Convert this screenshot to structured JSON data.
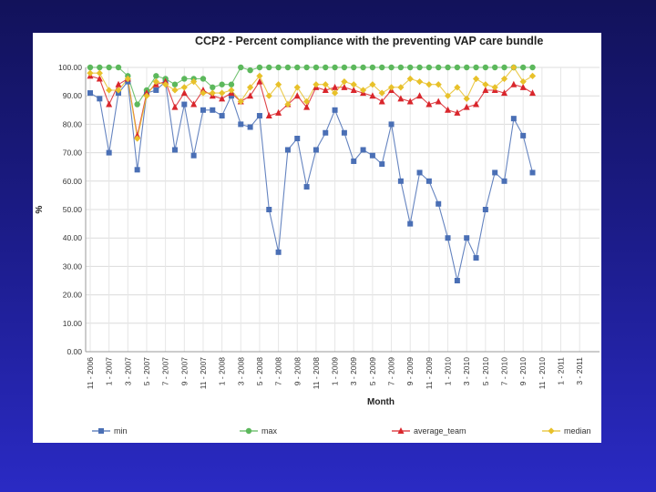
{
  "chart_data": {
    "type": "line",
    "title": "CCP2 - Percent compliance with the preventing VAP care bundle",
    "xlabel": "Month",
    "ylabel": "%",
    "ylim": [
      0,
      100
    ],
    "yticks": [
      "0.00",
      "10.00",
      "20.00",
      "30.00",
      "40.00",
      "50.00",
      "60.00",
      "70.00",
      "80.00",
      "90.00",
      "100.00"
    ],
    "grid": true,
    "legend": "bottom",
    "x_tick_labels": [
      "11 - 2006",
      "1 - 2007",
      "3 - 2007",
      "5 - 2007",
      "7 - 2007",
      "9 - 2007",
      "11 - 2007",
      "1 - 2008",
      "3 - 2008",
      "5 - 2008",
      "7 - 2008",
      "9 - 2008",
      "11 - 2008",
      "1 - 2009",
      "3 - 2009",
      "5 - 2009",
      "7 - 2009",
      "9 - 2009",
      "11 - 2009",
      "1 - 2010",
      "3 - 2010",
      "5 - 2010",
      "7 - 2010",
      "9 - 2010",
      "11 - 2010",
      "1 - 2011",
      "3 - 2011"
    ],
    "series": [
      {
        "name": "min",
        "color": "#4a6fb5",
        "marker": "square",
        "values": [
          91,
          89,
          70,
          91,
          95,
          64,
          91,
          92,
          95,
          71,
          87,
          69,
          85,
          85,
          83,
          90,
          80,
          79,
          83,
          50,
          35,
          71,
          75,
          58,
          71,
          77,
          85,
          77,
          67,
          71,
          69,
          66,
          80,
          60,
          45,
          63,
          60,
          52,
          40,
          25,
          40,
          33,
          50,
          63,
          60,
          82,
          76,
          63
        ]
      },
      {
        "name": "max",
        "color": "#5cb85c",
        "marker": "circle",
        "values": [
          100,
          100,
          100,
          100,
          97,
          87,
          92,
          97,
          96,
          94,
          96,
          96,
          96,
          93,
          94,
          94,
          100,
          99,
          100,
          100,
          100,
          100,
          100,
          100,
          100,
          100,
          100,
          100,
          100,
          100,
          100,
          100,
          100,
          100,
          100,
          100,
          100,
          100,
          100,
          100,
          100,
          100,
          100,
          100,
          100,
          100,
          100,
          100
        ]
      },
      {
        "name": "average_team",
        "color": "#d9262c",
        "marker": "triangle",
        "values": [
          97,
          96,
          87,
          94,
          96,
          76,
          91,
          94,
          95,
          86,
          91,
          87,
          92,
          90,
          89,
          91,
          88,
          90,
          95,
          83,
          84,
          87,
          90,
          86,
          93,
          92,
          93,
          93,
          92,
          91,
          90,
          88,
          92,
          89,
          88,
          90,
          87,
          88,
          85,
          84,
          86,
          87,
          92,
          92,
          91,
          94,
          93,
          91
        ]
      },
      {
        "name": "median",
        "color": "#e8c12a",
        "marker": "diamond",
        "values": [
          98,
          98,
          92,
          92,
          96,
          75,
          90,
          95,
          94,
          92,
          93,
          95,
          91,
          91,
          91,
          92,
          88,
          93,
          97,
          90,
          94,
          87,
          93,
          88,
          94,
          94,
          91,
          95,
          94,
          92,
          94,
          91,
          93,
          93,
          96,
          95,
          94,
          94,
          90,
          93,
          89,
          96,
          94,
          93,
          96,
          100,
          95,
          97
        ]
      }
    ]
  }
}
